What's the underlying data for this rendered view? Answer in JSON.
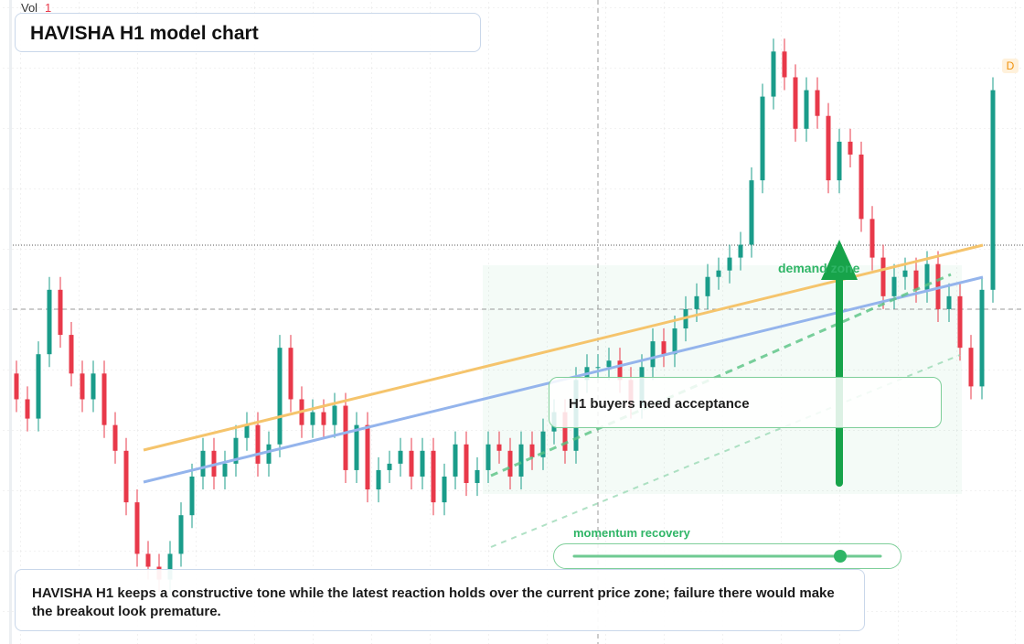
{
  "chart_data": {
    "type": "candlestick",
    "title": "HAVISHA H1 model chart",
    "volume_label": "Vol",
    "volume_value": "1",
    "timeframe_badge": "D",
    "zone_label": "demand zone",
    "callout": "H1 buyers need acceptance",
    "slider_label": "momentum recovery",
    "caption": "HAVISHA H1 keeps a constructive tone while the latest reaction holds over the current price zone; failure there would make the breakout look premature.",
    "ylim": [
      0,
      100
    ],
    "up_color": "#1a9c8a",
    "down_color": "#e8394a",
    "open": [
      42,
      38,
      35,
      45,
      55,
      48,
      42,
      38,
      42,
      34,
      30,
      22,
      14,
      12,
      10,
      14,
      20,
      26,
      30,
      26,
      28,
      32,
      34,
      28,
      31,
      46,
      38,
      34,
      36,
      34,
      37,
      27,
      34,
      24,
      27,
      28,
      30,
      26,
      30,
      22,
      26,
      31,
      25,
      27,
      31,
      30,
      26,
      31,
      29,
      33,
      36,
      30,
      41,
      43,
      43,
      44,
      41,
      37,
      43,
      47,
      45,
      49,
      52,
      54,
      57,
      58,
      60,
      62,
      72,
      85,
      92,
      88,
      80,
      86,
      82,
      72,
      78,
      76,
      66,
      60,
      54,
      57,
      58,
      55,
      59,
      52,
      54,
      46,
      40,
      55
    ],
    "high": [
      44,
      40,
      47,
      57,
      57,
      50,
      44,
      44,
      44,
      36,
      32,
      24,
      16,
      14,
      16,
      22,
      28,
      32,
      32,
      30,
      34,
      36,
      36,
      33,
      48,
      48,
      40,
      38,
      38,
      39,
      39,
      36,
      36,
      29,
      30,
      32,
      32,
      32,
      32,
      28,
      33,
      33,
      29,
      33,
      33,
      32,
      33,
      33,
      35,
      38,
      38,
      43,
      45,
      45,
      46,
      46,
      43,
      45,
      49,
      49,
      51,
      54,
      56,
      59,
      60,
      62,
      64,
      74,
      87,
      94,
      94,
      90,
      88,
      88,
      84,
      80,
      80,
      78,
      68,
      62,
      59,
      60,
      60,
      61,
      61,
      56,
      56,
      48,
      57,
      88
    ],
    "low": [
      36,
      33,
      33,
      43,
      46,
      40,
      36,
      36,
      32,
      28,
      20,
      12,
      10,
      8,
      8,
      12,
      18,
      24,
      24,
      24,
      26,
      30,
      26,
      26,
      29,
      36,
      32,
      32,
      32,
      32,
      25,
      25,
      22,
      22,
      25,
      26,
      24,
      24,
      20,
      20,
      24,
      23,
      23,
      25,
      28,
      24,
      24,
      27,
      27,
      31,
      28,
      28,
      39,
      41,
      41,
      39,
      35,
      35,
      41,
      43,
      43,
      47,
      50,
      52,
      55,
      56,
      58,
      60,
      70,
      83,
      86,
      78,
      78,
      80,
      70,
      70,
      74,
      64,
      58,
      52,
      52,
      55,
      53,
      53,
      50,
      50,
      44,
      38,
      38,
      53
    ],
    "close": [
      38,
      35,
      45,
      55,
      48,
      42,
      38,
      42,
      34,
      30,
      22,
      14,
      12,
      10,
      14,
      20,
      26,
      30,
      26,
      28,
      32,
      34,
      28,
      31,
      46,
      38,
      34,
      36,
      34,
      37,
      27,
      34,
      24,
      27,
      28,
      30,
      26,
      30,
      22,
      26,
      31,
      25,
      27,
      31,
      30,
      26,
      31,
      29,
      33,
      36,
      30,
      41,
      43,
      43,
      44,
      41,
      37,
      43,
      47,
      45,
      49,
      52,
      54,
      57,
      58,
      60,
      62,
      72,
      85,
      92,
      88,
      80,
      86,
      82,
      72,
      78,
      76,
      66,
      60,
      54,
      57,
      58,
      55,
      59,
      52,
      54,
      46,
      40,
      55,
      86
    ]
  }
}
